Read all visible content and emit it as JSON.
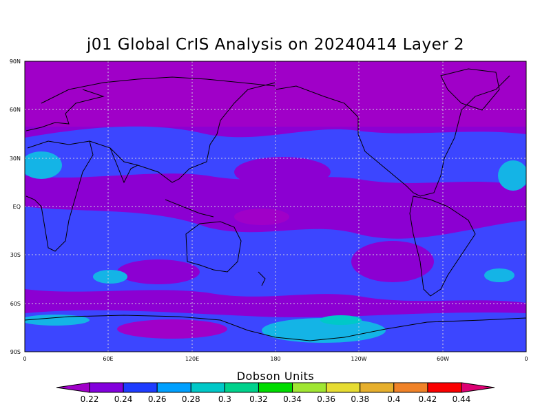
{
  "title": "j01 Global CrIS Analysis on 20240414 Layer 2",
  "colorbar": {
    "title": "Dobson Units",
    "levels": [
      "0.22",
      "0.24",
      "0.26",
      "0.28",
      "0.3",
      "0.32",
      "0.34",
      "0.36",
      "0.38",
      "0.4",
      "0.42",
      "0.44"
    ],
    "colors": [
      "#a000c8",
      "#8200dc",
      "#1e3cff",
      "#00a0ff",
      "#00c8c8",
      "#00d28c",
      "#00dc00",
      "#a0e632",
      "#e6dc32",
      "#e6af2d",
      "#f08228",
      "#fa0000",
      "#dc0073"
    ]
  },
  "axes": {
    "lat_labels": [
      "90N",
      "60N",
      "30N",
      "EQ",
      "30S",
      "60S",
      "90S"
    ],
    "lon_labels": [
      "0",
      "60E",
      "120E",
      "180",
      "120W",
      "60W",
      "0"
    ]
  },
  "palette": {
    "purple": "#8c00d2",
    "magenta": "#a000c8",
    "blue": "#3c46ff",
    "cyan": "#14b4e6",
    "teal": "#00c8c8",
    "coast": "#000000",
    "grid": "#cfcfe0"
  }
}
